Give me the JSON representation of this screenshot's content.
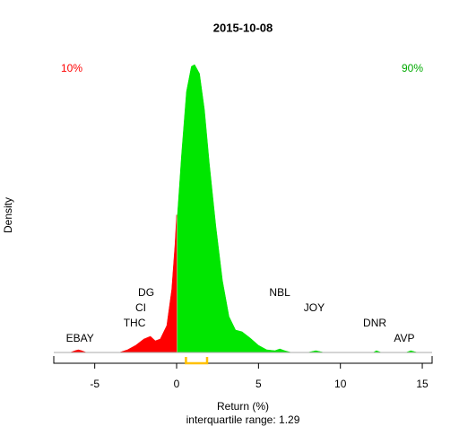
{
  "chart_data": {
    "type": "density",
    "title": "2015-10-08",
    "xlabel": "Return (%)",
    "ylabel": "Density",
    "subtitle": "interquartile range: 1.29",
    "left_note": {
      "text": "10%",
      "color": "#ff0000"
    },
    "right_note": {
      "text": "90%",
      "color": "#00aa00"
    },
    "xlim": [
      -7.5,
      15.6
    ],
    "xticks": [
      -5,
      0,
      5,
      10,
      15
    ],
    "ylim": [
      0,
      0.33
    ],
    "series": [
      {
        "color": "#ff0000",
        "x": [
          -7.5,
          -6.5,
          -6.2,
          -6,
          -5.8,
          -5.5,
          -3.5,
          -3,
          -2.5,
          -2,
          -1.6,
          -1.3,
          -1,
          -0.6,
          -0.3,
          -0.1,
          0
        ],
        "values": [
          0,
          0,
          0.002,
          0.003,
          0.002,
          0,
          0,
          0.003,
          0.008,
          0.015,
          0.018,
          0.013,
          0.015,
          0.03,
          0.07,
          0.12,
          0.153
        ]
      },
      {
        "color": "#00e600",
        "x": [
          0.05,
          0.3,
          0.6,
          0.9,
          1.1,
          1.4,
          1.7,
          2,
          2.4,
          2.8,
          3.2,
          3.6,
          4,
          4.5,
          5,
          5.5,
          6,
          6.3,
          6.6,
          7,
          8,
          8.5,
          9,
          12,
          12.2,
          12.5,
          14,
          14.3,
          14.7,
          15.6
        ],
        "values": [
          0.153,
          0.22,
          0.29,
          0.318,
          0.32,
          0.31,
          0.27,
          0.21,
          0.14,
          0.08,
          0.04,
          0.025,
          0.023,
          0.016,
          0.008,
          0.003,
          0.002,
          0.004,
          0.002,
          0,
          0,
          0.002,
          0,
          0,
          0.002,
          0,
          0,
          0.002,
          0,
          0
        ]
      }
    ],
    "iqr": [
      0.57,
      1.86
    ],
    "iqr_color": "#ffc000",
    "labels": [
      {
        "text": "EBAY",
        "x": -5.9
      },
      {
        "text": "THC",
        "x": -2.57
      },
      {
        "text": "CI",
        "x": -2.19
      },
      {
        "text": "DG",
        "x": -1.86
      },
      {
        "text": "NBL",
        "x": 6.3
      },
      {
        "text": "JOY",
        "x": 8.4
      },
      {
        "text": "DNR",
        "x": 12.1
      },
      {
        "text": "AVP",
        "x": 13.9
      }
    ]
  }
}
